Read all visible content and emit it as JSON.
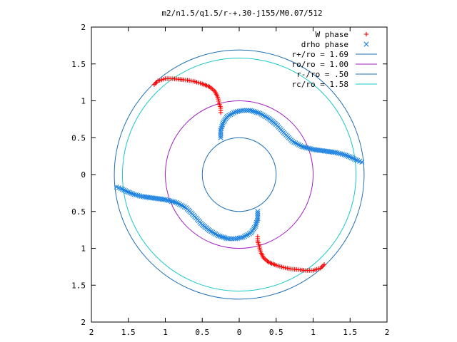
{
  "chart_data": {
    "type": "scatter",
    "title": "m2/n1.5/q1.5/r-+.30-j155/M0.07/512",
    "xlim": [
      -2,
      2
    ],
    "ylim": [
      -2,
      2
    ],
    "x_tick_values": [
      -2,
      -1.5,
      -1,
      -0.5,
      0,
      0.5,
      1,
      1.5,
      2
    ],
    "x_tick_labels": [
      "2",
      "1.5",
      "1",
      "0.5",
      "0",
      "0.5",
      "1",
      "1.5",
      "2"
    ],
    "y_tick_values": [
      2,
      1.5,
      1,
      0.5,
      0,
      -0.5,
      -1,
      -1.5,
      -2
    ],
    "y_tick_labels": [
      "2",
      "1.5",
      "1",
      "0.5",
      "0",
      "0.5",
      "1",
      "1.5",
      "2"
    ],
    "grid": false,
    "legend_position": "top-right",
    "circles": [
      {
        "name": "r+/ro = 1.69",
        "radius": 1.69,
        "color": "#1f6fb5"
      },
      {
        "name": "ro/ro = 1.00",
        "radius": 1.0,
        "color": "#a020c0"
      },
      {
        "name": "r-/ro = .50",
        "radius": 0.5,
        "color": "#1f6fb5"
      },
      {
        "name": "rc/ro = 1.58",
        "radius": 1.58,
        "color": "#19c8c8"
      }
    ],
    "series": [
      {
        "name": "W phase",
        "marker": "+",
        "color": "#ff0000",
        "points": [
          [
            -1.15,
            1.22
          ],
          [
            -1.1,
            1.27
          ],
          [
            -1.0,
            1.3
          ],
          [
            -0.9,
            1.3
          ],
          [
            -0.8,
            1.29
          ],
          [
            -0.7,
            1.28
          ],
          [
            -0.6,
            1.26
          ],
          [
            -0.5,
            1.23
          ],
          [
            -0.4,
            1.19
          ],
          [
            -0.33,
            1.13
          ],
          [
            -0.29,
            1.05
          ],
          [
            -0.27,
            0.97
          ],
          [
            -0.25,
            0.9
          ],
          [
            -0.25,
            0.84
          ],
          [
            1.15,
            -1.22
          ],
          [
            1.1,
            -1.27
          ],
          [
            1.0,
            -1.3
          ],
          [
            0.9,
            -1.3
          ],
          [
            0.8,
            -1.29
          ],
          [
            0.7,
            -1.28
          ],
          [
            0.6,
            -1.26
          ],
          [
            0.5,
            -1.23
          ],
          [
            0.4,
            -1.19
          ],
          [
            0.33,
            -1.13
          ],
          [
            0.29,
            -1.05
          ],
          [
            0.27,
            -0.97
          ],
          [
            0.25,
            -0.9
          ],
          [
            0.25,
            -0.84
          ]
        ]
      },
      {
        "name": "drho phase",
        "marker": "x",
        "color": "#1a80e0",
        "points": [
          [
            -0.25,
            0.5
          ],
          [
            -0.25,
            0.6
          ],
          [
            -0.22,
            0.7
          ],
          [
            -0.16,
            0.79
          ],
          [
            -0.05,
            0.85
          ],
          [
            0.05,
            0.87
          ],
          [
            0.15,
            0.87
          ],
          [
            0.28,
            0.83
          ],
          [
            0.4,
            0.76
          ],
          [
            0.5,
            0.68
          ],
          [
            0.6,
            0.57
          ],
          [
            0.72,
            0.45
          ],
          [
            0.85,
            0.38
          ],
          [
            1.0,
            0.34
          ],
          [
            1.15,
            0.32
          ],
          [
            1.3,
            0.3
          ],
          [
            1.42,
            0.27
          ],
          [
            1.52,
            0.23
          ],
          [
            1.6,
            0.19
          ],
          [
            1.66,
            0.17
          ],
          [
            0.25,
            -0.5
          ],
          [
            0.25,
            -0.6
          ],
          [
            0.22,
            -0.7
          ],
          [
            0.16,
            -0.79
          ],
          [
            0.05,
            -0.85
          ],
          [
            -0.05,
            -0.87
          ],
          [
            -0.15,
            -0.87
          ],
          [
            -0.28,
            -0.83
          ],
          [
            -0.4,
            -0.76
          ],
          [
            -0.5,
            -0.68
          ],
          [
            -0.6,
            -0.57
          ],
          [
            -0.72,
            -0.45
          ],
          [
            -0.85,
            -0.38
          ],
          [
            -1.0,
            -0.34
          ],
          [
            -1.15,
            -0.32
          ],
          [
            -1.3,
            -0.3
          ],
          [
            -1.42,
            -0.27
          ],
          [
            -1.52,
            -0.23
          ],
          [
            -1.6,
            -0.19
          ],
          [
            -1.66,
            -0.17
          ]
        ]
      }
    ]
  }
}
